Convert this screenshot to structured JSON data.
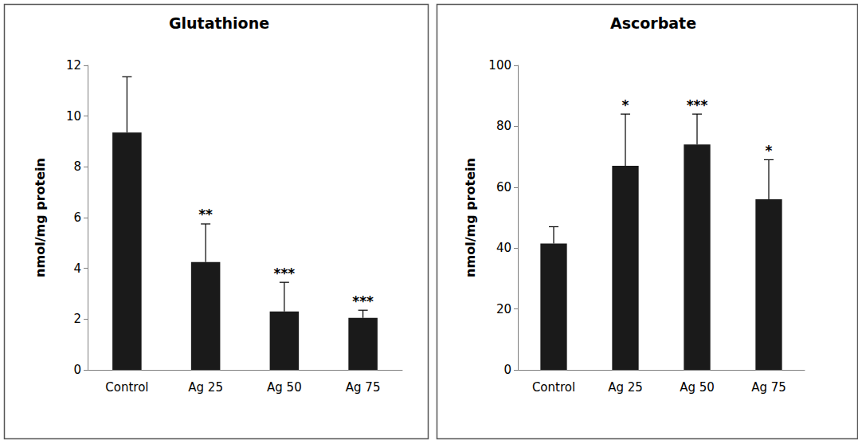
{
  "chart_data": [
    {
      "type": "bar",
      "title": "Glutathione",
      "y_label": "nmol/mg protein",
      "categories": [
        "Control",
        "Ag 25",
        "Ag 50",
        "Ag 75"
      ],
      "values": [
        9.35,
        4.25,
        2.3,
        2.05
      ],
      "errors": [
        2.2,
        1.5,
        1.15,
        0.3
      ],
      "annotations": [
        null,
        "**",
        "***",
        "***"
      ],
      "color": "#1a1a1a",
      "ylim": [
        0,
        12
      ],
      "yticks": [
        0,
        2,
        4,
        6,
        8,
        10,
        12
      ],
      "grid": false
    },
    {
      "type": "bar",
      "title": "Ascorbate",
      "y_label": "nmol/mg protein",
      "categories": [
        "Control",
        "Ag 25",
        "Ag 50",
        "Ag 75"
      ],
      "values": [
        41.5,
        67,
        74,
        56
      ],
      "errors": [
        5.5,
        17,
        10,
        13
      ],
      "annotations": [
        null,
        "*",
        "***",
        "*"
      ],
      "color": "#1a1a1a",
      "ylim": [
        0,
        100
      ],
      "yticks": [
        0,
        20,
        40,
        60,
        80,
        100
      ],
      "grid": false
    }
  ]
}
